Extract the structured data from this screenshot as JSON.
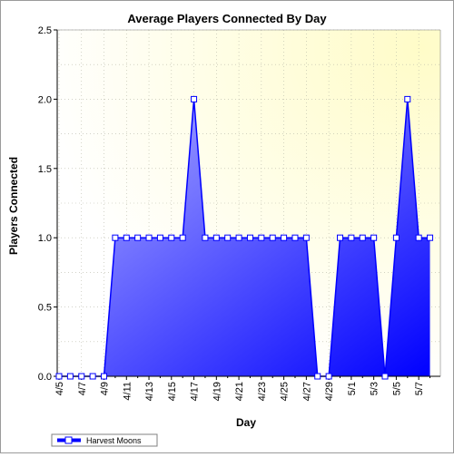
{
  "chart_data": {
    "type": "area",
    "title": "Average Players Connected By Day",
    "xlabel": "Day",
    "ylabel": "Players Connected",
    "ylim": [
      0,
      2.5
    ],
    "yticks": [
      "0.0",
      "0.5",
      "1.0",
      "1.5",
      "2.0",
      "2.5"
    ],
    "xtick_labels": [
      "4/5",
      "4/7",
      "4/9",
      "4/11",
      "4/13",
      "4/15",
      "4/17",
      "4/19",
      "4/21",
      "4/23",
      "4/25",
      "4/27",
      "4/29",
      "5/1",
      "5/3",
      "5/5",
      "5/7"
    ],
    "categories": [
      "4/5",
      "4/6",
      "4/7",
      "4/8",
      "4/9",
      "4/10",
      "4/11",
      "4/12",
      "4/13",
      "4/14",
      "4/15",
      "4/16",
      "4/17",
      "4/18",
      "4/19",
      "4/20",
      "4/21",
      "4/22",
      "4/23",
      "4/24",
      "4/25",
      "4/26",
      "4/27",
      "4/28",
      "4/29",
      "4/30",
      "5/1",
      "5/2",
      "5/3",
      "5/4",
      "5/5",
      "5/6",
      "5/7",
      "5/8"
    ],
    "grid": true,
    "legend_position": "bottom-left",
    "series": [
      {
        "name": "Harvest Moons",
        "values": [
          0,
          0,
          0,
          0,
          0,
          1,
          1,
          1,
          1,
          1,
          1,
          1,
          2,
          1,
          1,
          1,
          1,
          1,
          1,
          1,
          1,
          1,
          1,
          0,
          0,
          1,
          1,
          1,
          1,
          0,
          1,
          2,
          1,
          1
        ],
        "color": "#0000ff",
        "gradient_light": "#b4b4ff"
      }
    ]
  },
  "colors": {
    "plot_bg_light": "#fffff0",
    "plot_bg_yellow": "#fffdd0",
    "grid": "#b8b8a8",
    "axis": "#000000"
  }
}
